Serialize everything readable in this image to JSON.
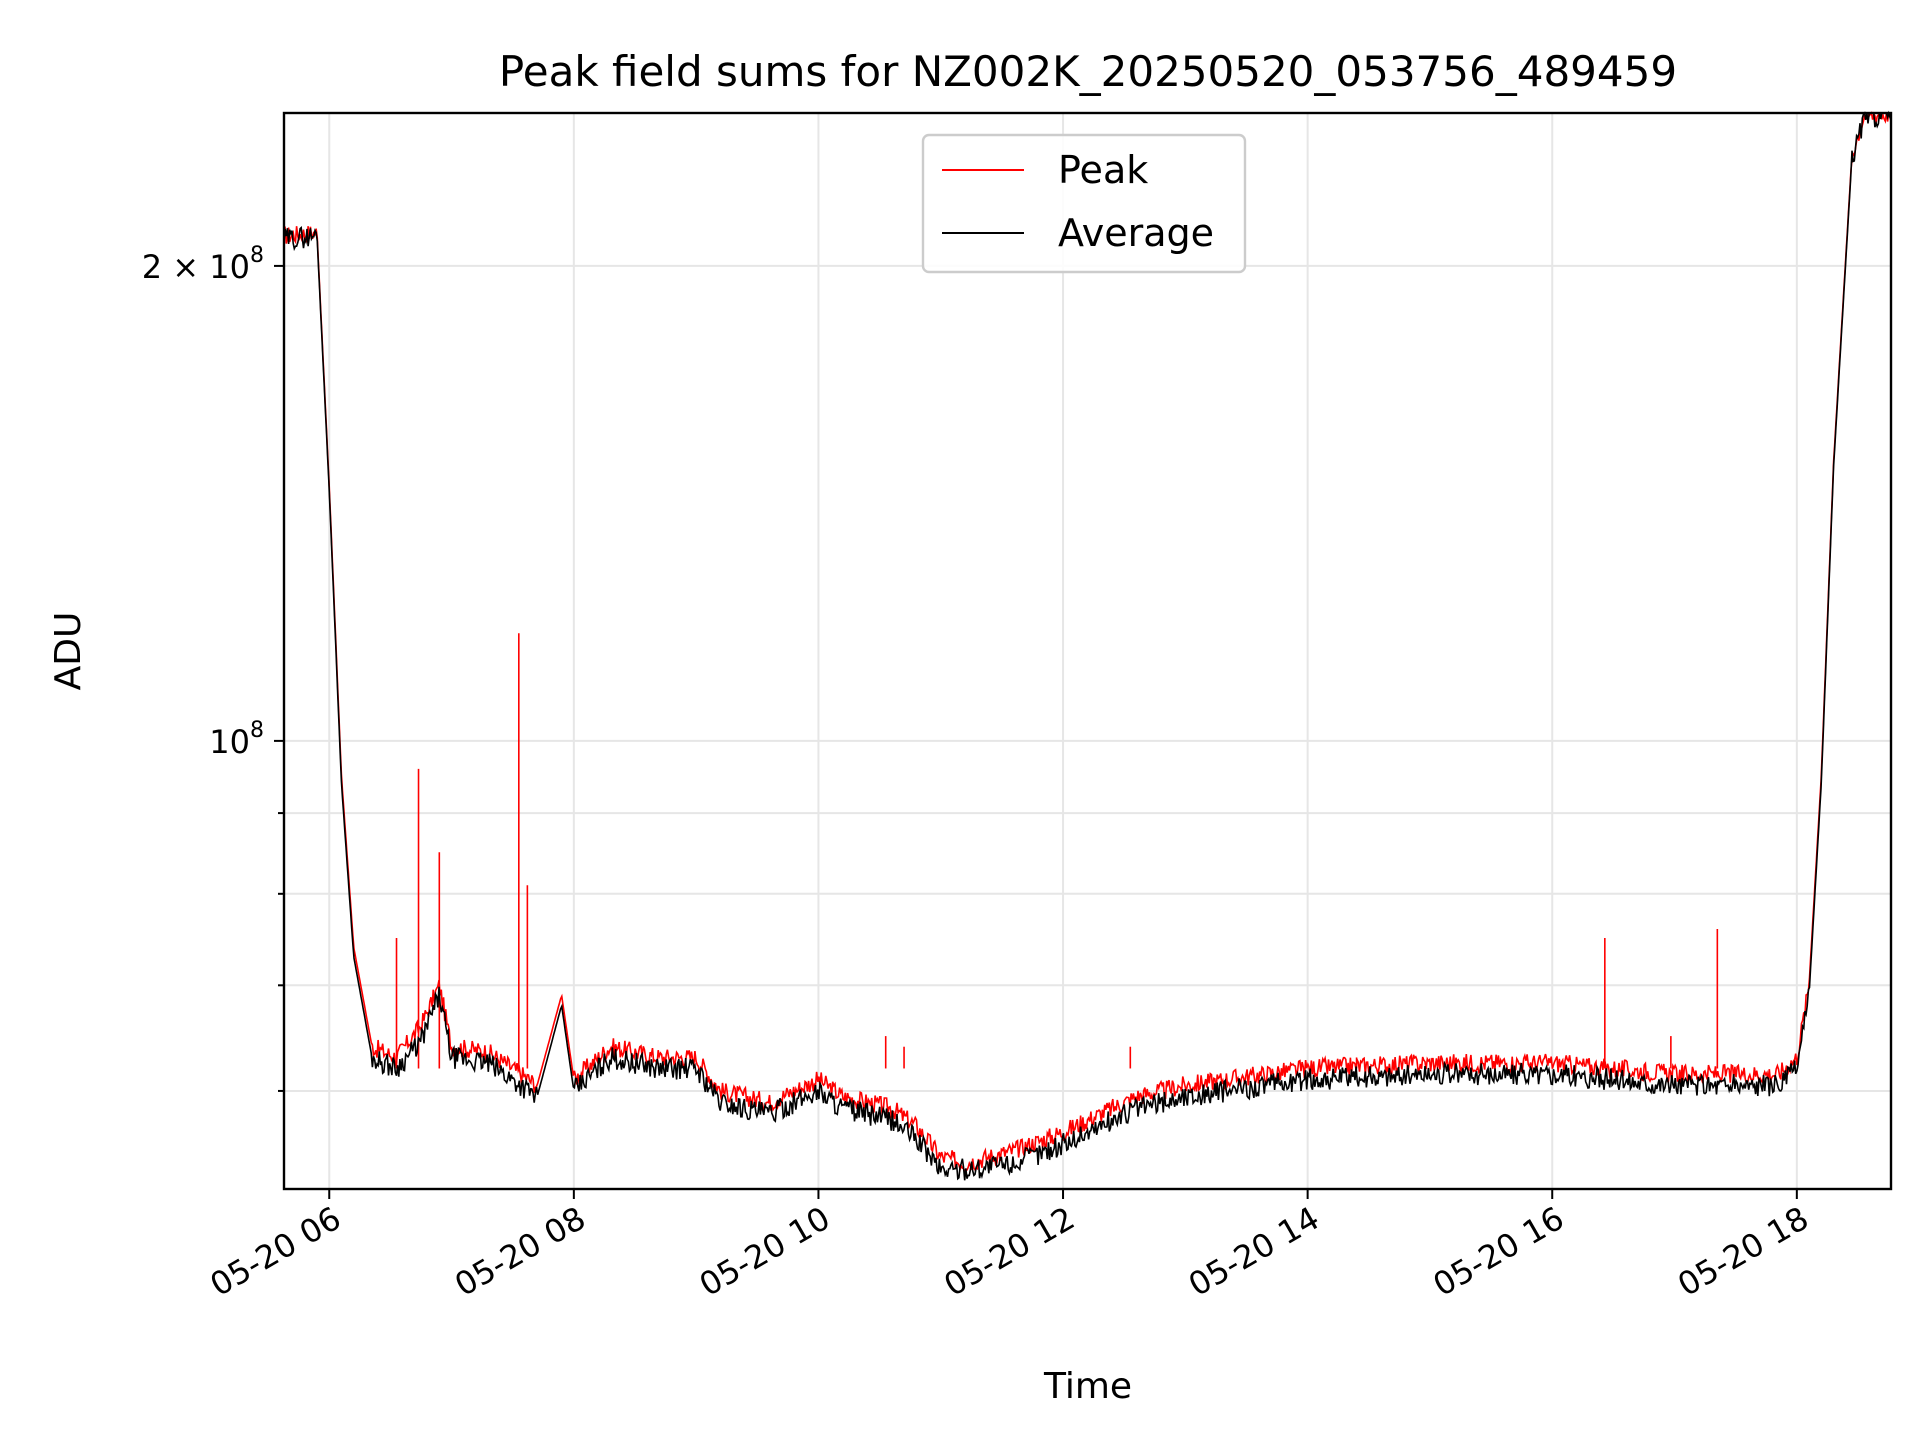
{
  "chart_data": {
    "type": "line",
    "title": "Peak field sums for NZ002K_20250520_053756_489459",
    "xlabel": "Time",
    "ylabel": "ADU",
    "x_ticks": [
      "05-20 06",
      "05-20 08",
      "05-20 10",
      "05-20 12",
      "05-20 14",
      "05-20 16",
      "05-20 18"
    ],
    "x_tick_hours": [
      6,
      8,
      10,
      12,
      14,
      16,
      18
    ],
    "xlim_hours": [
      5.63,
      18.77
    ],
    "y_scale": "log",
    "ylim": [
      52000000,
      250000000
    ],
    "y_tick_labels": [
      {
        "value": 200000000,
        "mantissa": "2 × 10",
        "exp": "8"
      },
      {
        "value": 100000000,
        "mantissa": "10",
        "exp": "8"
      }
    ],
    "y_minor_ticks": [
      60000000,
      70000000,
      80000000,
      90000000
    ],
    "grid": true,
    "legend_position": "upper-center",
    "series": [
      {
        "name": "Peak",
        "color": "#ff0000",
        "x_hours": [
          5.63,
          5.9,
          6.0,
          6.1,
          6.2,
          6.35,
          6.55,
          6.75,
          6.9,
          7.0,
          7.3,
          7.5,
          7.7,
          7.9,
          8.0,
          8.3,
          8.7,
          9.0,
          9.2,
          9.4,
          9.6,
          10.0,
          10.2,
          10.6,
          10.8,
          11.0,
          11.2,
          11.6,
          12.0,
          12.6,
          13.0,
          14.0,
          15.0,
          16.0,
          16.5,
          17.0,
          17.6,
          17.85,
          18.0,
          18.1,
          18.2,
          18.3,
          18.45,
          18.55,
          18.77
        ],
        "values": [
          209000000,
          210000000,
          145000000,
          95000000,
          74000000,
          64000000,
          63000000,
          66000000,
          70000000,
          64000000,
          63500000,
          62000000,
          60500000,
          69000000,
          61000000,
          64000000,
          63000000,
          63000000,
          60000000,
          59500000,
          59000000,
          61000000,
          59500000,
          58500000,
          57000000,
          54500000,
          54000000,
          55000000,
          56500000,
          59500000,
          60500000,
          62000000,
          62500000,
          62500000,
          62000000,
          61500000,
          61500000,
          61500000,
          63000000,
          70000000,
          95000000,
          150000000,
          235000000,
          249000000,
          250000000
        ],
        "spikes": [
          {
            "x_hours": 6.55,
            "value": 75000000
          },
          {
            "x_hours": 6.73,
            "value": 96000000
          },
          {
            "x_hours": 6.9,
            "value": 85000000
          },
          {
            "x_hours": 7.55,
            "value": 117000000
          },
          {
            "x_hours": 7.62,
            "value": 81000000
          },
          {
            "x_hours": 10.55,
            "value": 65000000
          },
          {
            "x_hours": 10.7,
            "value": 64000000
          },
          {
            "x_hours": 12.55,
            "value": 64000000
          },
          {
            "x_hours": 14.4,
            "value": 63000000
          },
          {
            "x_hours": 16.43,
            "value": 75000000
          },
          {
            "x_hours": 16.97,
            "value": 65000000
          },
          {
            "x_hours": 17.35,
            "value": 76000000
          }
        ]
      },
      {
        "name": "Average",
        "color": "#000000",
        "x_hours": [
          5.63,
          5.9,
          6.0,
          6.1,
          6.2,
          6.35,
          6.55,
          6.75,
          6.9,
          7.0,
          7.3,
          7.5,
          7.7,
          7.9,
          8.0,
          8.3,
          8.7,
          9.0,
          9.2,
          9.4,
          9.6,
          10.0,
          10.2,
          10.6,
          10.8,
          11.0,
          11.2,
          11.6,
          12.0,
          12.6,
          13.0,
          14.0,
          15.0,
          16.0,
          16.5,
          17.0,
          17.6,
          17.85,
          18.0,
          18.1,
          18.2,
          18.3,
          18.45,
          18.55,
          18.77
        ],
        "values": [
          208000000,
          209000000,
          144000000,
          94000000,
          73000000,
          63000000,
          62000000,
          64500000,
          69000000,
          63000000,
          62500000,
          61000000,
          59500000,
          68000000,
          60000000,
          63000000,
          62000000,
          62000000,
          59000000,
          58500000,
          58000000,
          60000000,
          58500000,
          57500000,
          56000000,
          53500000,
          53500000,
          54000000,
          55500000,
          58500000,
          59500000,
          61000000,
          61500000,
          61500000,
          61000000,
          60500000,
          60500000,
          60500000,
          62000000,
          69000000,
          94000000,
          149000000,
          234000000,
          248000000,
          250000000
        ]
      }
    ]
  }
}
